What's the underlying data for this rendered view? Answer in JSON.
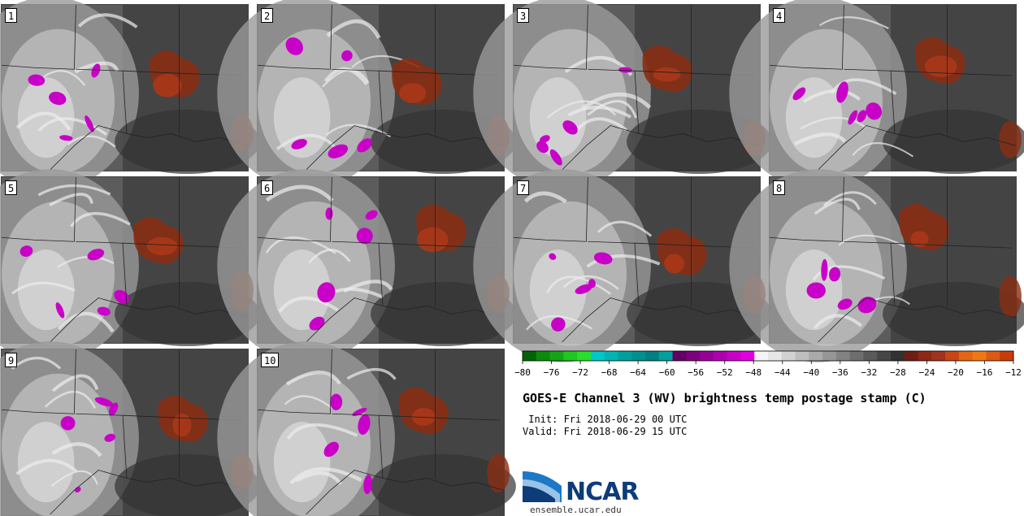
{
  "panels": [
    {
      "label": "1",
      "seed": 11
    },
    {
      "label": "2",
      "seed": 23
    },
    {
      "label": "3",
      "seed": 37
    },
    {
      "label": "4",
      "seed": 41
    },
    {
      "label": "5",
      "seed": 53
    },
    {
      "label": "6",
      "seed": 67
    },
    {
      "label": "7",
      "seed": 71
    },
    {
      "label": "8",
      "seed": 83
    },
    {
      "label": "9",
      "seed": 97
    },
    {
      "label": "10",
      "seed": 101
    }
  ],
  "colorbar": {
    "colors": [
      "#006400",
      "#0a8c0a",
      "#14a514",
      "#1ec81e",
      "#28e028",
      "#00c8c8",
      "#00b4b4",
      "#00a0a0",
      "#009090",
      "#008080",
      "#00a0a0",
      "#640064",
      "#7d007d",
      "#960096",
      "#af00af",
      "#c800c8",
      "#e100e1",
      "#f5f5f5",
      "#e6e6e6",
      "#d2d2d2",
      "#bebebe",
      "#aaaaaa",
      "#969696",
      "#828282",
      "#6e6e6e",
      "#5a5a5a",
      "#464646",
      "#323232",
      "#6e1e14",
      "#8c2814",
      "#a0321e",
      "#c84614",
      "#e66414",
      "#f07814",
      "#dc5a14",
      "#c83c0a"
    ],
    "tick_labels": [
      "−80",
      "−76",
      "−72",
      "−68",
      "−64",
      "−60",
      "−56",
      "−52",
      "−48",
      "−44",
      "−40",
      "−36",
      "−32",
      "−28",
      "−24",
      "−20",
      "−16",
      "−12"
    ]
  },
  "title": "GOES-E Channel 3 (WV) brightness temp postage stamp (C)",
  "init_text": " Init: Fri 2018-06-29 00 UTC",
  "valid_text": "Valid: Fri 2018-06-29 15 UTC",
  "logo": {
    "text": "NCAR",
    "site": "ensemble.ucar.edu",
    "color": "#0d3c78"
  }
}
